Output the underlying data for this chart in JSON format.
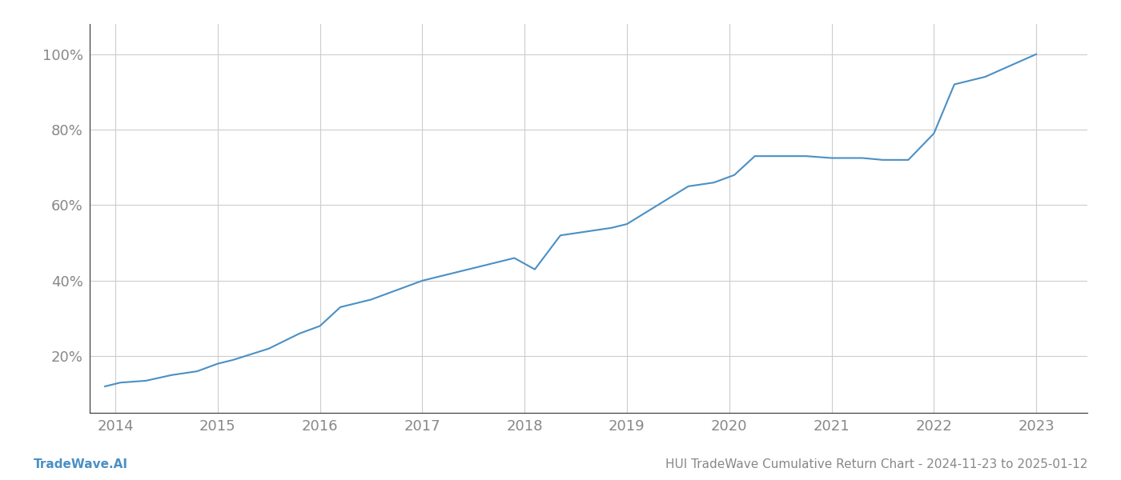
{
  "title": "HUI TradeWave Cumulative Return Chart - 2024-11-23 to 2025-01-12",
  "watermark": "TradeWave.AI",
  "line_color": "#4a90c4",
  "background_color": "#ffffff",
  "grid_color": "#cccccc",
  "x_values": [
    2013.9,
    2014.05,
    2014.3,
    2014.55,
    2014.8,
    2015.0,
    2015.15,
    2015.5,
    2015.8,
    2016.0,
    2016.2,
    2016.5,
    2016.8,
    2017.0,
    2017.3,
    2017.6,
    2017.9,
    2018.1,
    2018.35,
    2018.6,
    2018.85,
    2019.0,
    2019.3,
    2019.6,
    2019.85,
    2020.05,
    2020.25,
    2020.5,
    2020.75,
    2021.0,
    2021.3,
    2021.5,
    2021.75,
    2022.0,
    2022.2,
    2022.5,
    2022.75,
    2023.0
  ],
  "y_values": [
    12,
    13,
    13.5,
    15,
    16,
    18,
    19,
    22,
    26,
    28,
    33,
    35,
    38,
    40,
    42,
    44,
    46,
    43,
    52,
    53,
    54,
    55,
    60,
    65,
    66,
    68,
    73,
    73,
    73,
    72.5,
    72.5,
    72,
    72,
    79,
    92,
    94,
    97,
    100
  ],
  "xlim": [
    2013.75,
    2023.5
  ],
  "ylim": [
    5,
    108
  ],
  "yticks": [
    20,
    40,
    60,
    80,
    100
  ],
  "xticks": [
    2014,
    2015,
    2016,
    2017,
    2018,
    2019,
    2020,
    2021,
    2022,
    2023
  ],
  "line_width": 1.5,
  "tick_label_color": "#888888",
  "axis_color": "#333333",
  "title_fontsize": 11,
  "watermark_fontsize": 11,
  "tick_fontsize": 13
}
